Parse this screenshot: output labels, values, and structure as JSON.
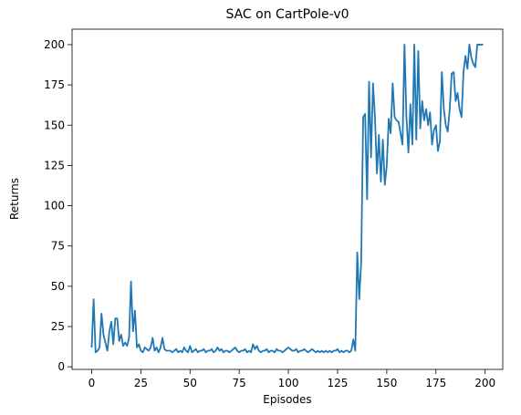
{
  "chart_data": {
    "type": "line",
    "title": "SAC on CartPole-v0",
    "xlabel": "Episodes",
    "ylabel": "Returns",
    "x": [
      0,
      1,
      2,
      3,
      4,
      5,
      6,
      7,
      8,
      9,
      10,
      11,
      12,
      13,
      14,
      15,
      16,
      17,
      18,
      19,
      20,
      21,
      22,
      23,
      24,
      25,
      26,
      27,
      28,
      29,
      30,
      31,
      32,
      33,
      34,
      35,
      36,
      37,
      38,
      39,
      40,
      41,
      42,
      43,
      44,
      45,
      46,
      47,
      48,
      49,
      50,
      51,
      52,
      53,
      54,
      55,
      56,
      57,
      58,
      59,
      60,
      61,
      62,
      63,
      64,
      65,
      66,
      67,
      68,
      69,
      70,
      71,
      72,
      73,
      74,
      75,
      76,
      77,
      78,
      79,
      80,
      81,
      82,
      83,
      84,
      85,
      86,
      87,
      88,
      89,
      90,
      91,
      92,
      93,
      94,
      95,
      96,
      97,
      98,
      99,
      100,
      101,
      102,
      103,
      104,
      105,
      106,
      107,
      108,
      109,
      110,
      111,
      112,
      113,
      114,
      115,
      116,
      117,
      118,
      119,
      120,
      121,
      122,
      123,
      124,
      125,
      126,
      127,
      128,
      129,
      130,
      131,
      132,
      133,
      134,
      135,
      136,
      137,
      138,
      139,
      140,
      141,
      142,
      143,
      144,
      145,
      146,
      147,
      148,
      149,
      150,
      151,
      152,
      153,
      154,
      155,
      156,
      157,
      158,
      159,
      160,
      161,
      162,
      163,
      164,
      165,
      166,
      167,
      168,
      169,
      170,
      171,
      172,
      173,
      174,
      175,
      176,
      177,
      178,
      179,
      180,
      181,
      182,
      183,
      184,
      185,
      186,
      187,
      188,
      189,
      190,
      191,
      192,
      193,
      194,
      195,
      196,
      197,
      198,
      199
    ],
    "series": [
      {
        "name": "SAC",
        "color": "#1f77b4",
        "values": [
          12,
          42,
          9,
          10,
          12,
          33,
          20,
          15,
          10,
          22,
          28,
          14,
          30,
          30,
          16,
          20,
          13,
          15,
          13,
          18,
          53,
          22,
          35,
          12,
          14,
          10,
          9,
          12,
          11,
          10,
          12,
          18,
          10,
          12,
          9,
          12,
          18,
          11,
          10,
          10,
          10,
          9,
          10,
          11,
          9,
          10,
          9,
          12,
          10,
          9,
          13,
          9,
          10,
          11,
          9,
          10,
          10,
          11,
          9,
          10,
          10,
          11,
          9,
          10,
          12,
          10,
          11,
          9,
          10,
          10,
          9,
          10,
          11,
          12,
          10,
          9,
          10,
          10,
          11,
          9,
          10,
          9,
          14,
          11,
          13,
          10,
          9,
          10,
          10,
          11,
          9,
          10,
          10,
          9,
          11,
          10,
          10,
          9,
          10,
          11,
          12,
          11,
          10,
          10,
          11,
          9,
          10,
          10,
          11,
          10,
          9,
          10,
          11,
          10,
          9,
          10,
          9,
          10,
          9,
          10,
          9,
          10,
          9,
          10,
          10,
          11,
          9,
          10,
          9,
          10,
          10,
          9,
          10,
          17,
          10,
          71,
          42,
          65,
          155,
          157,
          104,
          177,
          130,
          176,
          155,
          120,
          144,
          115,
          141,
          113,
          125,
          154,
          145,
          176,
          155,
          153,
          152,
          145,
          138,
          200,
          155,
          133,
          163,
          138,
          200,
          141,
          196,
          148,
          165,
          153,
          160,
          150,
          158,
          138,
          147,
          150,
          134,
          140,
          183,
          160,
          150,
          146,
          160,
          182,
          183,
          165,
          170,
          160,
          155,
          183,
          193,
          185,
          200,
          192,
          188,
          186,
          200,
          200,
          200,
          200
        ]
      }
    ],
    "xlim": [
      -9.95,
      208.95
    ],
    "ylim": [
      -1.6,
      209.6
    ],
    "xticks": [
      0,
      25,
      50,
      75,
      100,
      125,
      150,
      175,
      200
    ],
    "yticks": [
      0,
      25,
      50,
      75,
      100,
      125,
      150,
      175,
      200
    ]
  }
}
